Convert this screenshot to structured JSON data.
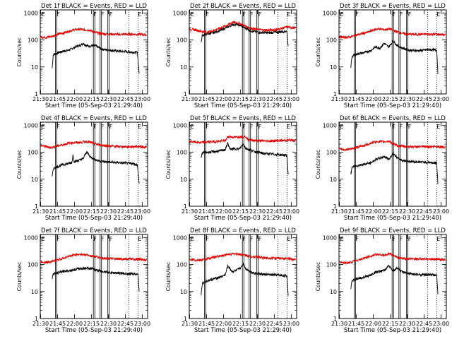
{
  "colors": {
    "events": "#000000",
    "lld": "#e00000",
    "axes": "#000000",
    "background": "#ffffff"
  },
  "common": {
    "ylabel": "Counts/sec",
    "xlabel": "Start Time (05-Sep-03 21:29:40)",
    "xticks": [
      "21:30",
      "21:45",
      "22:00",
      "22:15",
      "22:30",
      "22:45",
      "23:00"
    ],
    "xtick_minutes": [
      0.33,
      15.33,
      30.33,
      45.33,
      60.33,
      75.33,
      90.33
    ],
    "yticks": [
      "1",
      "10",
      "100",
      "1000"
    ],
    "yticks_values": [
      1,
      10,
      100,
      1000
    ],
    "ylim": [
      1,
      1300
    ],
    "xlim_minutes": [
      0,
      95
    ],
    "x_unit": "minutes since 21:29:40",
    "flag_lines_solid_minutes": [
      13.5,
      14.7,
      47.0,
      48.3,
      53.0,
      54.2,
      59.8,
      61.0
    ],
    "flag_lines_dotted_minutes": [
      78.5,
      86.5
    ],
    "flag_labels": [
      "E",
      "F",
      "F",
      "F",
      "F",
      "E"
    ],
    "flag_label_minutes": [
      2.5,
      16.0,
      48.5,
      55.0,
      62.5,
      88.0
    ]
  },
  "chart_data": [
    {
      "type": "line",
      "title": "Det 1f BLACK = Events, RED = LLD",
      "xlabel": "Start Time (05-Sep-03 21:29:40)",
      "ylabel": "Counts/sec",
      "ylim": [
        1,
        1300
      ],
      "series": [
        {
          "name": "Events",
          "color": "#000000",
          "x": [
            10.5,
            11.5,
            16,
            20,
            25,
            30,
            32,
            35,
            38,
            41,
            44,
            47,
            50,
            54,
            58,
            65,
            72,
            80,
            86,
            87.5
          ],
          "values": [
            9,
            28,
            34,
            38,
            42,
            52,
            58,
            62,
            75,
            62,
            58,
            62,
            58,
            46,
            44,
            40,
            38,
            36,
            34,
            6
          ]
        },
        {
          "name": "LLD",
          "color": "#e00000",
          "x": [
            0.5,
            5,
            10,
            15,
            20,
            25,
            30,
            35,
            40,
            43,
            47,
            50,
            55,
            60,
            70,
            80,
            90,
            94
          ],
          "values": [
            130,
            125,
            135,
            160,
            180,
            210,
            240,
            250,
            235,
            240,
            200,
            185,
            170,
            165,
            160,
            165,
            160,
            155
          ]
        }
      ]
    },
    {
      "type": "line",
      "title": "Det 2f BLACK = Events, RED = LLD",
      "xlabel": "Start Time (05-Sep-03 21:29:40)",
      "ylabel": "Counts/sec",
      "ylim": [
        1,
        1300
      ],
      "series": [
        {
          "name": "Events",
          "color": "#000000",
          "x": [
            10.5,
            11.5,
            16,
            22,
            28,
            34,
            38,
            42,
            46,
            50,
            56,
            62,
            70,
            78,
            84,
            86.5,
            87.5
          ],
          "values": [
            80,
            150,
            165,
            190,
            230,
            300,
            370,
            380,
            330,
            270,
            210,
            190,
            185,
            195,
            210,
            210,
            60
          ]
        },
        {
          "name": "LLD",
          "color": "#e00000",
          "x": [
            0.5,
            5,
            10,
            16,
            22,
            28,
            34,
            38,
            42,
            46,
            50,
            56,
            62,
            70,
            78,
            86,
            94
          ],
          "values": [
            250,
            240,
            210,
            190,
            230,
            280,
            360,
            450,
            440,
            380,
            320,
            260,
            240,
            230,
            245,
            300,
            280
          ]
        }
      ]
    },
    {
      "type": "line",
      "title": "Det 3f BLACK = Events, RED = LLD",
      "xlabel": "Start Time (05-Sep-03 21:29:40)",
      "ylabel": "Counts/sec",
      "ylim": [
        1,
        1300
      ],
      "series": [
        {
          "name": "Events",
          "color": "#000000",
          "x": [
            10.5,
            11.5,
            16,
            22,
            28,
            32,
            36,
            40,
            44,
            48,
            52,
            56,
            62,
            70,
            80,
            86.5,
            87.5
          ],
          "values": [
            10,
            25,
            30,
            34,
            40,
            55,
            50,
            75,
            55,
            90,
            60,
            50,
            42,
            40,
            44,
            42,
            6
          ]
        },
        {
          "name": "LLD",
          "color": "#e00000",
          "x": [
            0.5,
            5,
            10,
            15,
            20,
            25,
            30,
            35,
            40,
            45,
            50,
            55,
            60,
            70,
            80,
            90,
            94
          ],
          "values": [
            130,
            125,
            130,
            150,
            170,
            190,
            230,
            260,
            240,
            255,
            210,
            180,
            165,
            160,
            165,
            160,
            155
          ]
        }
      ]
    },
    {
      "type": "line",
      "title": "Det 4f BLACK = Events, RED = LLD",
      "xlabel": "Start Time (05-Sep-03 21:29:40)",
      "ylabel": "Counts/sec",
      "ylim": [
        1,
        1300
      ],
      "series": [
        {
          "name": "Events",
          "color": "#000000",
          "x": [
            10.5,
            11.5,
            16,
            20,
            25,
            28,
            29,
            30,
            34,
            38,
            41,
            44,
            48,
            52,
            58,
            66,
            74,
            82,
            86,
            87.5
          ],
          "values": [
            12,
            25,
            30,
            35,
            38,
            42,
            80,
            45,
            50,
            58,
            105,
            70,
            55,
            48,
            44,
            42,
            40,
            38,
            34,
            7
          ]
        },
        {
          "name": "LLD",
          "color": "#e00000",
          "x": [
            0.5,
            5,
            10,
            15,
            20,
            25,
            30,
            35,
            40,
            43,
            47,
            52,
            58,
            66,
            76,
            86,
            94
          ],
          "values": [
            180,
            160,
            150,
            170,
            190,
            215,
            230,
            230,
            250,
            240,
            215,
            190,
            175,
            165,
            160,
            165,
            155
          ]
        }
      ]
    },
    {
      "type": "line",
      "title": "Det 5f BLACK = Events, RED = LLD",
      "xlabel": "Start Time (05-Sep-03 21:29:40)",
      "ylabel": "Counts/sec",
      "ylim": [
        1,
        1300
      ],
      "series": [
        {
          "name": "Events",
          "color": "#000000",
          "x": [
            10.5,
            11.5,
            16,
            22,
            28,
            32,
            34,
            36,
            40,
            44,
            48,
            50,
            53,
            56,
            60,
            66,
            74,
            82,
            86.5,
            87.5
          ],
          "values": [
            60,
            95,
            100,
            105,
            115,
            125,
            220,
            130,
            135,
            130,
            200,
            140,
            125,
            115,
            100,
            90,
            85,
            80,
            75,
            15
          ]
        },
        {
          "name": "LLD",
          "color": "#e00000",
          "x": [
            0.5,
            5,
            10,
            16,
            22,
            28,
            32,
            34,
            40,
            46,
            50,
            52,
            56,
            60,
            70,
            80,
            90,
            94
          ],
          "values": [
            250,
            240,
            230,
            240,
            250,
            260,
            270,
            380,
            360,
            380,
            380,
            290,
            280,
            270,
            260,
            270,
            280,
            270
          ]
        }
      ]
    },
    {
      "type": "line",
      "title": "Det 6f BLACK = Events, RED = LLD",
      "xlabel": "Start Time (05-Sep-03 21:29:40)",
      "ylabel": "Counts/sec",
      "ylim": [
        1,
        1300
      ],
      "series": [
        {
          "name": "Events",
          "color": "#000000",
          "x": [
            10.5,
            11.5,
            16,
            22,
            28,
            33,
            36,
            40,
            44,
            48,
            52,
            56,
            62,
            70,
            80,
            86.5,
            87.5
          ],
          "values": [
            15,
            28,
            32,
            36,
            40,
            55,
            60,
            70,
            55,
            90,
            60,
            50,
            46,
            44,
            42,
            40,
            7
          ]
        },
        {
          "name": "LLD",
          "color": "#e00000",
          "x": [
            0.5,
            5,
            10,
            15,
            20,
            25,
            30,
            35,
            40,
            44,
            48,
            52,
            58,
            66,
            76,
            86,
            94
          ],
          "values": [
            140,
            125,
            130,
            150,
            170,
            195,
            230,
            250,
            245,
            260,
            200,
            175,
            165,
            160,
            160,
            165,
            155
          ]
        }
      ]
    },
    {
      "type": "line",
      "title": "Det 7f BLACK = Events, RED = LLD",
      "xlabel": "Start Time (05-Sep-03 21:29:40)",
      "ylabel": "Counts/sec",
      "ylim": [
        1,
        1300
      ],
      "series": [
        {
          "name": "Events",
          "color": "#000000",
          "x": [
            10.5,
            11.5,
            16,
            22,
            28,
            34,
            38,
            42,
            46,
            50,
            56,
            62,
            70,
            78,
            84,
            86.5,
            87.5
          ],
          "values": [
            30,
            45,
            50,
            58,
            62,
            70,
            72,
            75,
            70,
            62,
            55,
            50,
            48,
            45,
            46,
            44,
            10
          ]
        },
        {
          "name": "LLD",
          "color": "#e00000",
          "x": [
            0.5,
            5,
            10,
            15,
            20,
            25,
            30,
            35,
            40,
            45,
            50,
            55,
            62,
            70,
            80,
            90,
            94
          ],
          "values": [
            130,
            120,
            130,
            150,
            170,
            200,
            230,
            240,
            230,
            210,
            190,
            175,
            165,
            160,
            160,
            155,
            150
          ]
        }
      ]
    },
    {
      "type": "line",
      "title": "Det 8f BLACK = Events, RED = LLD",
      "xlabel": "Start Time (05-Sep-03 21:29:40)",
      "ylabel": "Counts/sec",
      "ylim": [
        1,
        1300
      ],
      "series": [
        {
          "name": "Events",
          "color": "#000000",
          "x": [
            10.5,
            11.5,
            16,
            22,
            28,
            32,
            34,
            38,
            42,
            46,
            48,
            50,
            54,
            58,
            64,
            72,
            80,
            86.5,
            87.5
          ],
          "values": [
            8,
            20,
            25,
            30,
            35,
            42,
            90,
            55,
            60,
            80,
            110,
            70,
            55,
            48,
            44,
            42,
            40,
            38,
            7
          ]
        },
        {
          "name": "LLD",
          "color": "#e00000",
          "x": [
            0.5,
            5,
            10,
            15,
            20,
            25,
            30,
            35,
            40,
            45,
            50,
            55,
            62,
            70,
            80,
            90,
            94
          ],
          "values": [
            160,
            150,
            145,
            160,
            180,
            200,
            220,
            240,
            250,
            240,
            220,
            200,
            185,
            175,
            170,
            165,
            160
          ]
        }
      ]
    },
    {
      "type": "line",
      "title": "Det 9f BLACK = Events, RED = LLD",
      "xlabel": "Start Time (05-Sep-03 21:29:40)",
      "ylabel": "Counts/sec",
      "ylim": [
        1,
        1300
      ],
      "series": [
        {
          "name": "Events",
          "color": "#000000",
          "x": [
            10.5,
            11.5,
            16,
            22,
            28,
            32,
            36,
            40,
            44,
            48,
            52,
            56,
            62,
            70,
            80,
            86.5,
            87.5
          ],
          "values": [
            12,
            25,
            30,
            34,
            40,
            52,
            55,
            60,
            90,
            60,
            75,
            52,
            46,
            42,
            42,
            40,
            8
          ]
        },
        {
          "name": "LLD",
          "color": "#e00000",
          "x": [
            0.5,
            5,
            10,
            15,
            20,
            25,
            30,
            35,
            40,
            44,
            48,
            52,
            58,
            66,
            76,
            86,
            94
          ],
          "values": [
            120,
            115,
            120,
            140,
            160,
            190,
            220,
            240,
            220,
            250,
            220,
            180,
            165,
            160,
            160,
            160,
            150
          ]
        }
      ]
    }
  ]
}
